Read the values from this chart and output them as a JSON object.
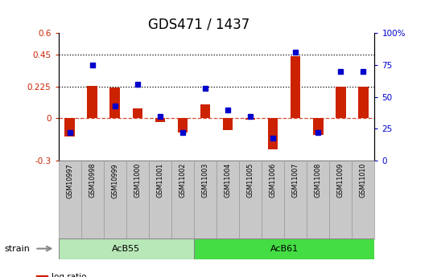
{
  "title": "GDS471 / 1437",
  "samples": [
    "GSM10997",
    "GSM10998",
    "GSM10999",
    "GSM11000",
    "GSM11001",
    "GSM11002",
    "GSM11003",
    "GSM11004",
    "GSM11005",
    "GSM11006",
    "GSM11007",
    "GSM11008",
    "GSM11009",
    "GSM11010"
  ],
  "log_ratio": [
    -0.13,
    0.23,
    0.215,
    0.07,
    -0.025,
    -0.1,
    0.1,
    -0.085,
    -0.012,
    -0.22,
    0.44,
    -0.12,
    0.225,
    0.225
  ],
  "percentile": [
    22,
    75,
    43,
    60,
    35,
    22,
    57,
    40,
    35,
    18,
    85,
    22,
    70,
    70
  ],
  "acb55_count": 6,
  "acb61_count": 8,
  "ylim_left": [
    -0.3,
    0.6
  ],
  "ylim_right": [
    0,
    100
  ],
  "yticks_left": [
    -0.3,
    0.0,
    0.225,
    0.45,
    0.6
  ],
  "yticks_left_labels": [
    "-0.3",
    "0",
    "0.225",
    "0.45",
    "0.6"
  ],
  "yticks_right": [
    0,
    25,
    50,
    75,
    100
  ],
  "yticks_right_labels": [
    "0",
    "25",
    "50",
    "75",
    "100%"
  ],
  "hline1": 0.45,
  "hline2": 0.225,
  "bar_color": "#cc2200",
  "marker_color": "#0000cc",
  "acb55_color": "#b8e8b8",
  "acb61_color": "#44dd44",
  "xtick_bg": "#c8c8c8",
  "title_fontsize": 12,
  "bar_width": 0.45
}
